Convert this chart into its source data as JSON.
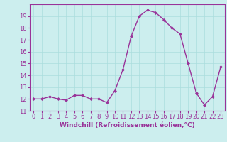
{
  "x": [
    0,
    1,
    2,
    3,
    4,
    5,
    6,
    7,
    8,
    9,
    10,
    11,
    12,
    13,
    14,
    15,
    16,
    17,
    18,
    19,
    20,
    21,
    22,
    23
  ],
  "y": [
    12.0,
    12.0,
    12.2,
    12.0,
    11.9,
    12.3,
    12.3,
    12.0,
    12.0,
    11.7,
    12.7,
    14.5,
    17.3,
    19.0,
    19.5,
    19.3,
    18.7,
    18.0,
    17.5,
    15.0,
    12.5,
    11.5,
    12.2,
    14.7
  ],
  "line_color": "#993399",
  "marker": "D",
  "markersize": 2.0,
  "linewidth": 1.0,
  "bg_color": "#cceeee",
  "grid_color": "#aadddd",
  "xlabel": "Windchill (Refroidissement éolien,°C)",
  "xlabel_color": "#993399",
  "tick_color": "#993399",
  "ylim": [
    11,
    20
  ],
  "xlim": [
    -0.5,
    23.5
  ],
  "yticks": [
    11,
    12,
    13,
    14,
    15,
    16,
    17,
    18,
    19
  ],
  "xticks": [
    0,
    1,
    2,
    3,
    4,
    5,
    6,
    7,
    8,
    9,
    10,
    11,
    12,
    13,
    14,
    15,
    16,
    17,
    18,
    19,
    20,
    21,
    22,
    23
  ],
  "fontsize_label": 6.5,
  "fontsize_tick": 6.0
}
